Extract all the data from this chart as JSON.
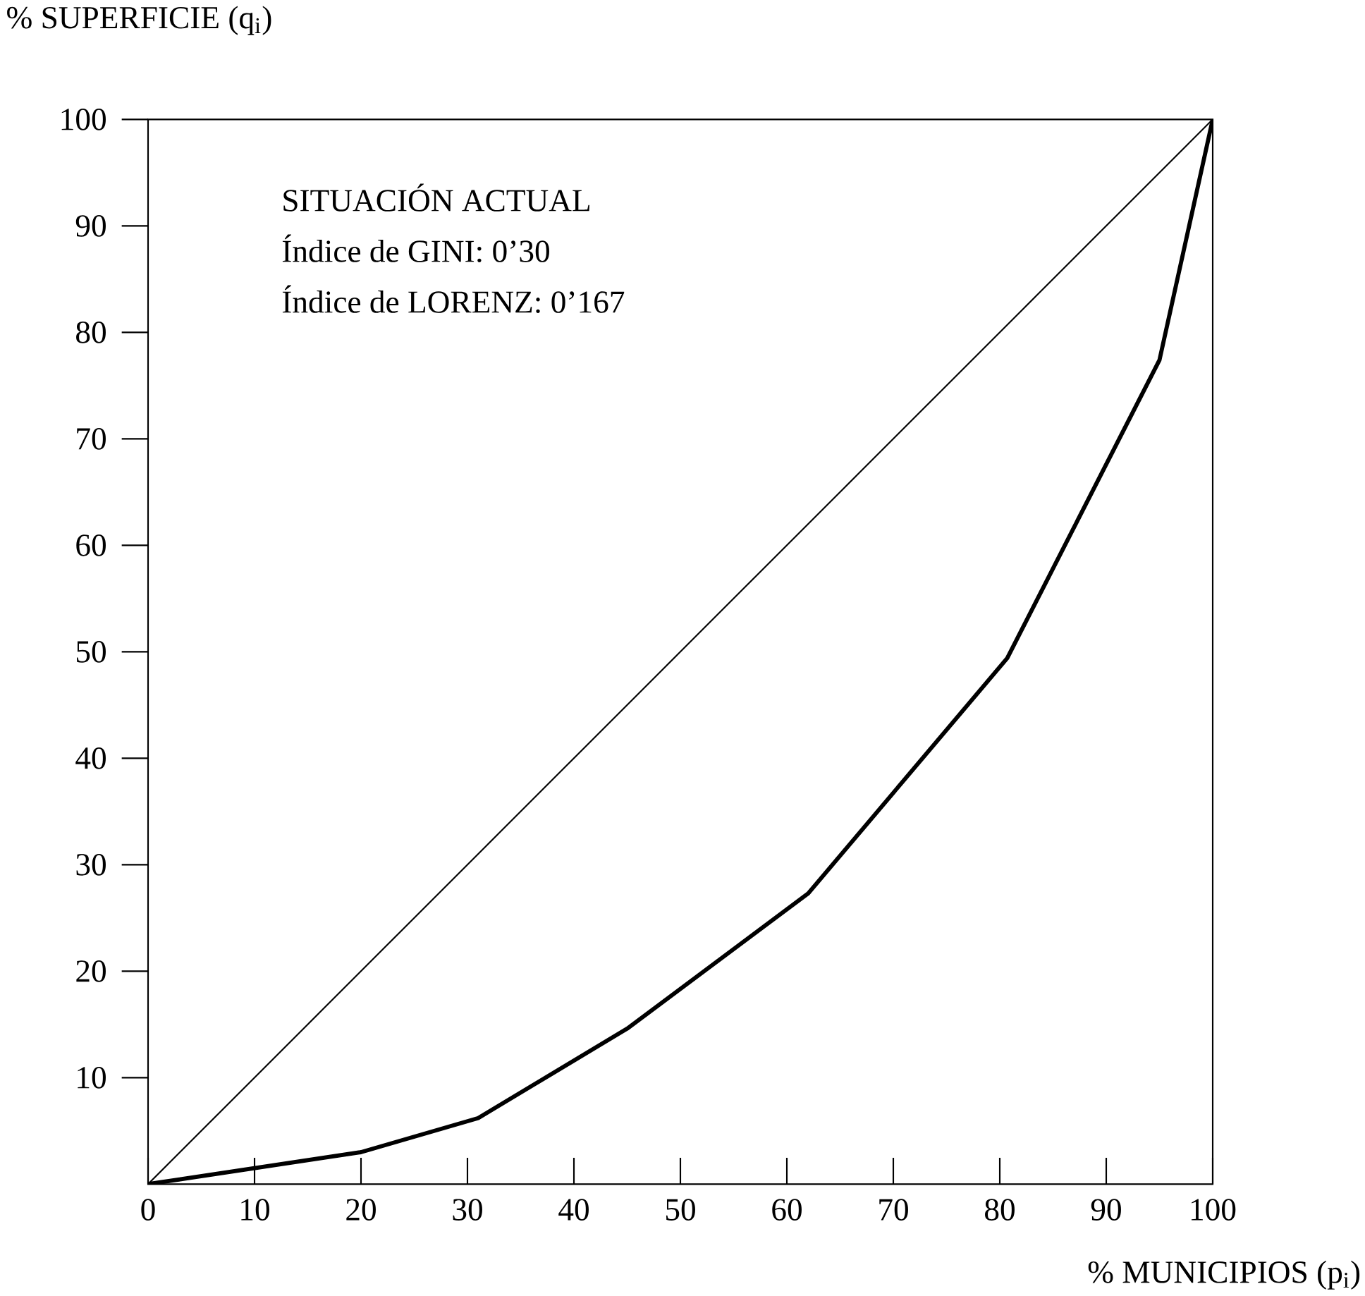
{
  "chart_data": {
    "type": "line",
    "xlabel": "% MUNICIPIOS (p$_{i}$)",
    "ylabel": "% SUPERFICIE (q$_{i}$)",
    "annotations": [
      "SITUACIÓN ACTUAL",
      "Índice de GINI: 0’30",
      "Índice de LORENZ: 0’167"
    ],
    "series": [
      {
        "color": "#000000",
        "x": [
          0,
          20,
          31,
          45,
          62,
          80.7,
          95,
          100
        ],
        "values": [
          0,
          3,
          6.2,
          14.6,
          27.3,
          49.4,
          77.4,
          100
        ]
      },
      {
        "color": "#000000",
        "x": [
          0,
          100
        ],
        "values": [
          0,
          100
        ]
      }
    ],
    "xlim": [
      0,
      100
    ],
    "ylim": [
      0,
      100
    ],
    "xticks": [
      0,
      10,
      20,
      30,
      40,
      50,
      60,
      70,
      80,
      90,
      100
    ],
    "yticks": [
      10,
      20,
      30,
      40,
      50,
      60,
      70,
      80,
      90,
      100
    ]
  }
}
